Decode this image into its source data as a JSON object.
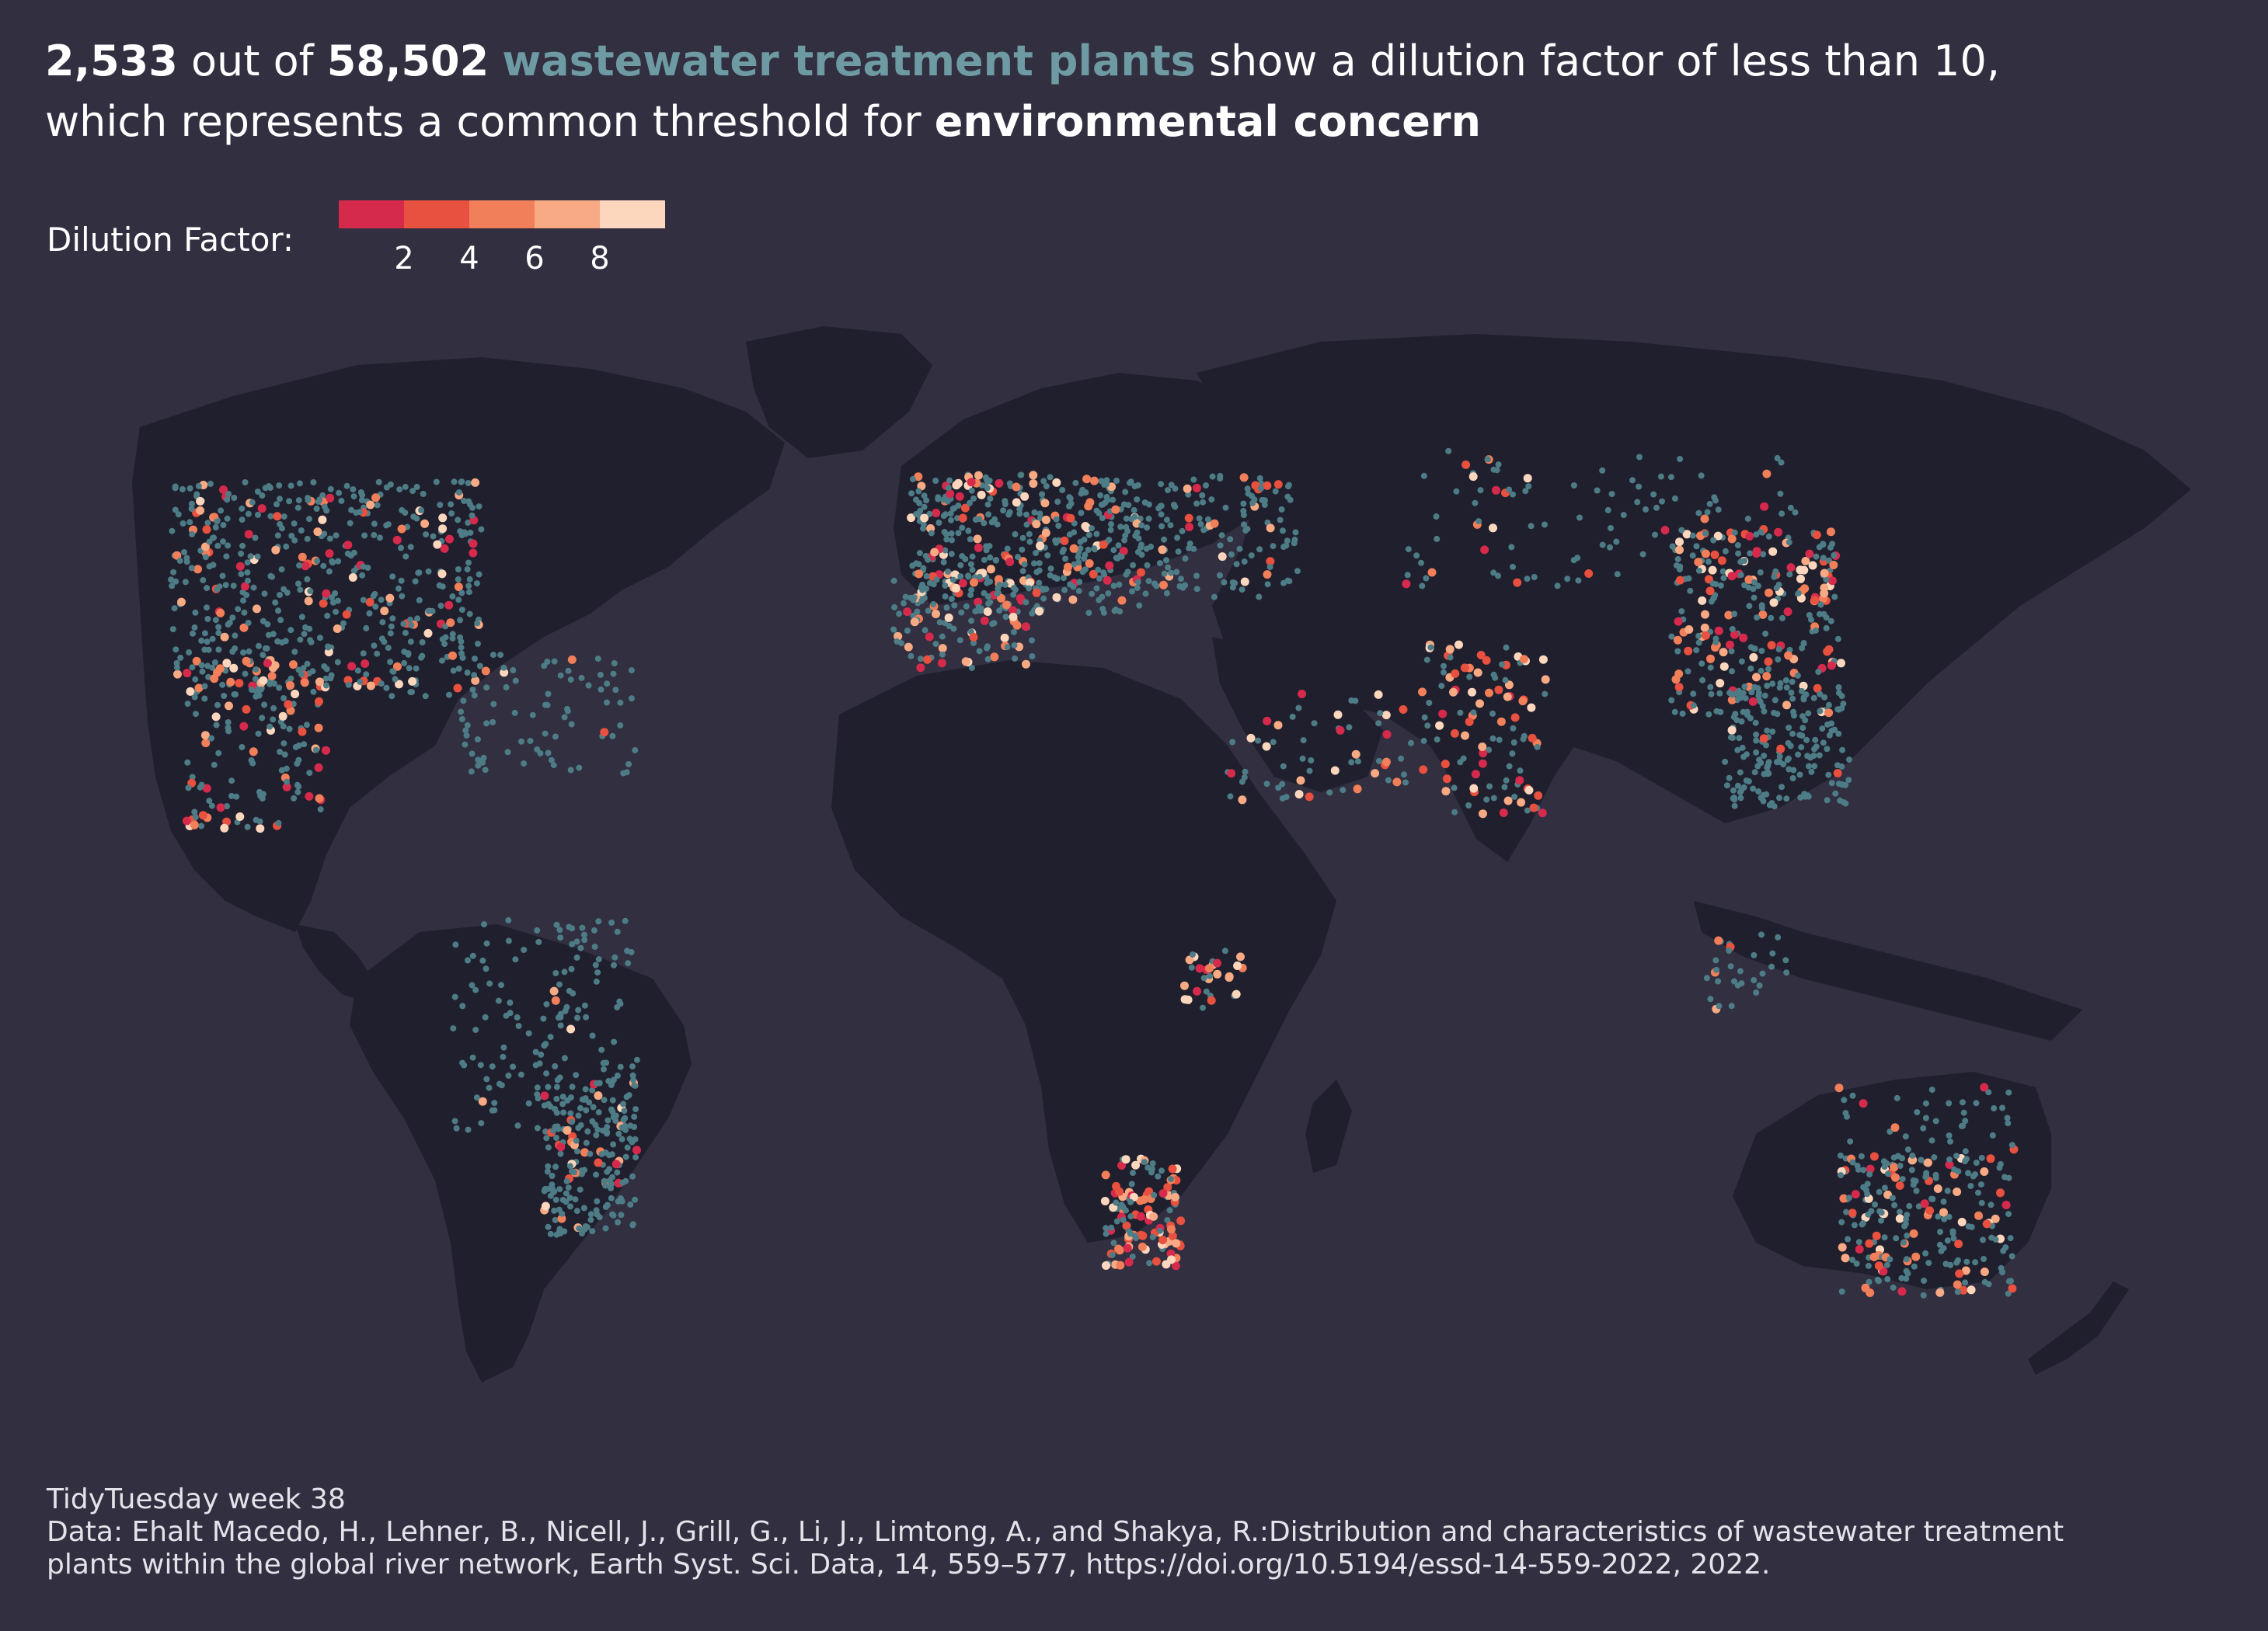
{
  "title": {
    "count": "2,533",
    "out_of_text": " out of ",
    "total": "58,502",
    "subject": "wastewater treatment plants",
    "rest_line1": " show a dilution factor of less than 10,",
    "line2_start": "which represents a common threshold for ",
    "emphasis": "environmental concern"
  },
  "legend": {
    "label": "Dilution Factor:",
    "colors": [
      "#d62a4d",
      "#e8503f",
      "#f1805a",
      "#f7aa84",
      "#fdd7bd"
    ],
    "ticks": [
      "2",
      "4",
      "6",
      "8"
    ]
  },
  "map": {
    "land_color": "#201f2d",
    "point_color_normal": "#4d7c86",
    "point_colors_low_dilution": [
      "#d62a4d",
      "#e8503f",
      "#f1805a",
      "#f7aa84",
      "#fdd7bd"
    ]
  },
  "caption": {
    "line1": "TidyTuesday week 38",
    "line2": "Data: Ehalt Macedo, H., Lehner, B., Nicell, J., Grill, G., Li, J., Limtong, A., and Shakya, R.:Distribution and characteristics of wastewater treatment",
    "line3": "plants within the global river network, Earth Syst. Sci. Data, 14, 559–577, https://doi.org/10.5194/essd-14-559-2022, 2022."
  }
}
